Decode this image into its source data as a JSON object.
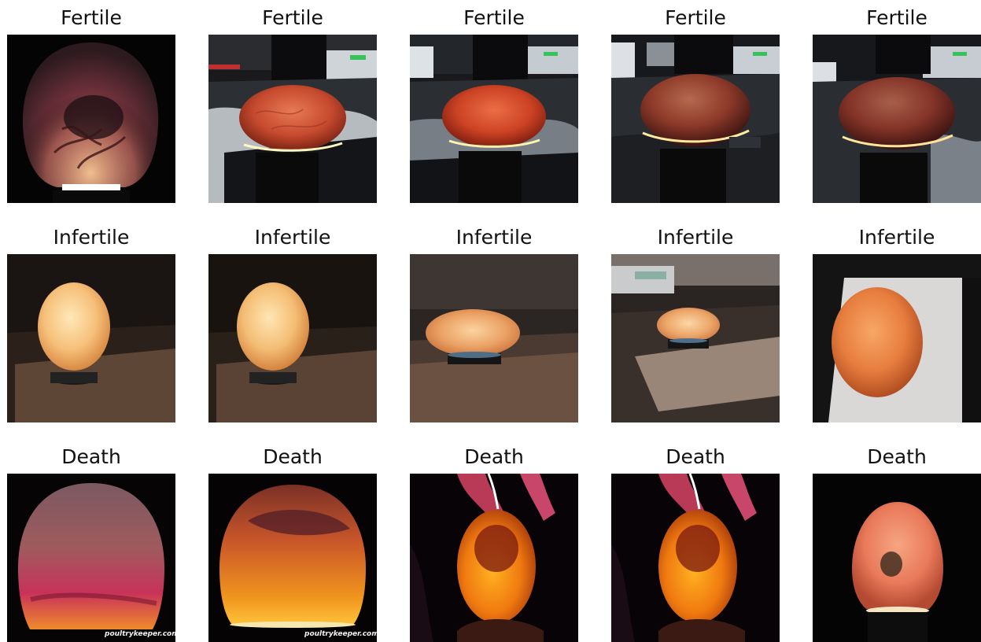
{
  "grid": {
    "rows": [
      {
        "label": "Fertile",
        "images": [
          {
            "title": "Fertile",
            "scene": "veined-candled-egg-closeup"
          },
          {
            "title": "Fertile",
            "scene": "egg-on-holder-desk"
          },
          {
            "title": "Fertile",
            "scene": "egg-on-holder-desk"
          },
          {
            "title": "Fertile",
            "scene": "egg-on-holder-desk-dark"
          },
          {
            "title": "Fertile",
            "scene": "egg-on-holder-desk-dark"
          }
        ]
      },
      {
        "label": "Infertile",
        "images": [
          {
            "title": "Infertile",
            "scene": "bright-egg-upright-on-stand"
          },
          {
            "title": "Infertile",
            "scene": "bright-egg-upright-on-stand"
          },
          {
            "title": "Infertile",
            "scene": "bright-egg-on-stand-wide"
          },
          {
            "title": "Infertile",
            "scene": "bright-egg-on-stand-small"
          },
          {
            "title": "Infertile",
            "scene": "bright-egg-on-white-board"
          }
        ]
      },
      {
        "label": "Death",
        "images": [
          {
            "title": "Death",
            "scene": "blood-ring-candled-egg",
            "watermark": "poultrykeeper.com"
          },
          {
            "title": "Death",
            "scene": "speckled-candled-egg",
            "watermark": "poultrykeeper.com"
          },
          {
            "title": "Death",
            "scene": "glowing-egg-in-hand"
          },
          {
            "title": "Death",
            "scene": "glowing-egg-in-hand"
          },
          {
            "title": "Death",
            "scene": "egg-with-dark-spot-on-stand"
          }
        ]
      }
    ]
  }
}
